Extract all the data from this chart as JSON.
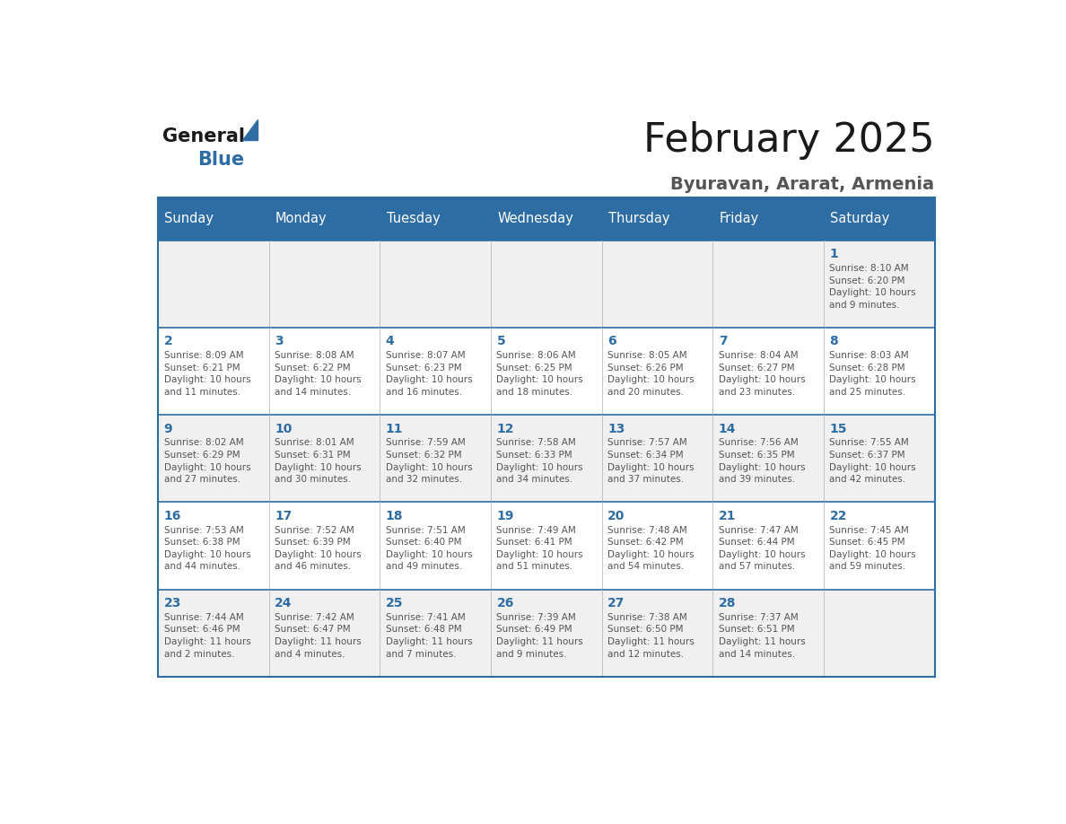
{
  "title": "February 2025",
  "subtitle": "Byuravan, Ararat, Armenia",
  "header_color": "#2E6DA4",
  "header_text_color": "#FFFFFF",
  "day_names": [
    "Sunday",
    "Monday",
    "Tuesday",
    "Wednesday",
    "Thursday",
    "Friday",
    "Saturday"
  ],
  "background_color": "#FFFFFF",
  "cell_bg_even": "#F0F0F0",
  "cell_bg_odd": "#FFFFFF",
  "cell_border_color": "#2E6DA4",
  "number_color": "#2E6DA4",
  "text_color": "#555555",
  "logo_color1": "#1A1A1A",
  "logo_color2": "#2E6DA4",
  "weeks": [
    {
      "days": [
        {
          "date": null,
          "info": null
        },
        {
          "date": null,
          "info": null
        },
        {
          "date": null,
          "info": null
        },
        {
          "date": null,
          "info": null
        },
        {
          "date": null,
          "info": null
        },
        {
          "date": null,
          "info": null
        },
        {
          "date": 1,
          "info": "Sunrise: 8:10 AM\nSunset: 6:20 PM\nDaylight: 10 hours\nand 9 minutes."
        }
      ]
    },
    {
      "days": [
        {
          "date": 2,
          "info": "Sunrise: 8:09 AM\nSunset: 6:21 PM\nDaylight: 10 hours\nand 11 minutes."
        },
        {
          "date": 3,
          "info": "Sunrise: 8:08 AM\nSunset: 6:22 PM\nDaylight: 10 hours\nand 14 minutes."
        },
        {
          "date": 4,
          "info": "Sunrise: 8:07 AM\nSunset: 6:23 PM\nDaylight: 10 hours\nand 16 minutes."
        },
        {
          "date": 5,
          "info": "Sunrise: 8:06 AM\nSunset: 6:25 PM\nDaylight: 10 hours\nand 18 minutes."
        },
        {
          "date": 6,
          "info": "Sunrise: 8:05 AM\nSunset: 6:26 PM\nDaylight: 10 hours\nand 20 minutes."
        },
        {
          "date": 7,
          "info": "Sunrise: 8:04 AM\nSunset: 6:27 PM\nDaylight: 10 hours\nand 23 minutes."
        },
        {
          "date": 8,
          "info": "Sunrise: 8:03 AM\nSunset: 6:28 PM\nDaylight: 10 hours\nand 25 minutes."
        }
      ]
    },
    {
      "days": [
        {
          "date": 9,
          "info": "Sunrise: 8:02 AM\nSunset: 6:29 PM\nDaylight: 10 hours\nand 27 minutes."
        },
        {
          "date": 10,
          "info": "Sunrise: 8:01 AM\nSunset: 6:31 PM\nDaylight: 10 hours\nand 30 minutes."
        },
        {
          "date": 11,
          "info": "Sunrise: 7:59 AM\nSunset: 6:32 PM\nDaylight: 10 hours\nand 32 minutes."
        },
        {
          "date": 12,
          "info": "Sunrise: 7:58 AM\nSunset: 6:33 PM\nDaylight: 10 hours\nand 34 minutes."
        },
        {
          "date": 13,
          "info": "Sunrise: 7:57 AM\nSunset: 6:34 PM\nDaylight: 10 hours\nand 37 minutes."
        },
        {
          "date": 14,
          "info": "Sunrise: 7:56 AM\nSunset: 6:35 PM\nDaylight: 10 hours\nand 39 minutes."
        },
        {
          "date": 15,
          "info": "Sunrise: 7:55 AM\nSunset: 6:37 PM\nDaylight: 10 hours\nand 42 minutes."
        }
      ]
    },
    {
      "days": [
        {
          "date": 16,
          "info": "Sunrise: 7:53 AM\nSunset: 6:38 PM\nDaylight: 10 hours\nand 44 minutes."
        },
        {
          "date": 17,
          "info": "Sunrise: 7:52 AM\nSunset: 6:39 PM\nDaylight: 10 hours\nand 46 minutes."
        },
        {
          "date": 18,
          "info": "Sunrise: 7:51 AM\nSunset: 6:40 PM\nDaylight: 10 hours\nand 49 minutes."
        },
        {
          "date": 19,
          "info": "Sunrise: 7:49 AM\nSunset: 6:41 PM\nDaylight: 10 hours\nand 51 minutes."
        },
        {
          "date": 20,
          "info": "Sunrise: 7:48 AM\nSunset: 6:42 PM\nDaylight: 10 hours\nand 54 minutes."
        },
        {
          "date": 21,
          "info": "Sunrise: 7:47 AM\nSunset: 6:44 PM\nDaylight: 10 hours\nand 57 minutes."
        },
        {
          "date": 22,
          "info": "Sunrise: 7:45 AM\nSunset: 6:45 PM\nDaylight: 10 hours\nand 59 minutes."
        }
      ]
    },
    {
      "days": [
        {
          "date": 23,
          "info": "Sunrise: 7:44 AM\nSunset: 6:46 PM\nDaylight: 11 hours\nand 2 minutes."
        },
        {
          "date": 24,
          "info": "Sunrise: 7:42 AM\nSunset: 6:47 PM\nDaylight: 11 hours\nand 4 minutes."
        },
        {
          "date": 25,
          "info": "Sunrise: 7:41 AM\nSunset: 6:48 PM\nDaylight: 11 hours\nand 7 minutes."
        },
        {
          "date": 26,
          "info": "Sunrise: 7:39 AM\nSunset: 6:49 PM\nDaylight: 11 hours\nand 9 minutes."
        },
        {
          "date": 27,
          "info": "Sunrise: 7:38 AM\nSunset: 6:50 PM\nDaylight: 11 hours\nand 12 minutes."
        },
        {
          "date": 28,
          "info": "Sunrise: 7:37 AM\nSunset: 6:51 PM\nDaylight: 11 hours\nand 14 minutes."
        },
        {
          "date": null,
          "info": null
        }
      ]
    }
  ]
}
